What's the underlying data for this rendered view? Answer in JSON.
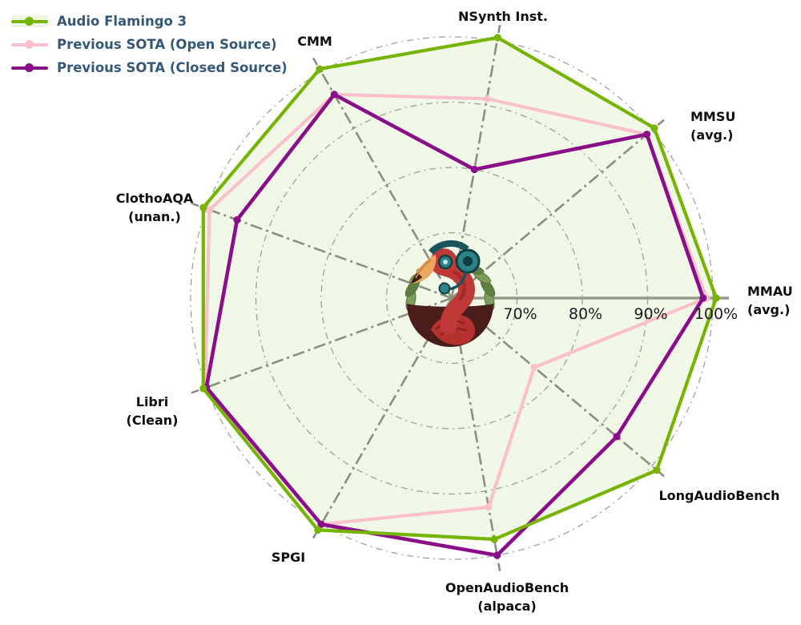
{
  "legend": {
    "text_color": "#35587a",
    "items": [
      {
        "label": "Audio Flamingo 3"
      },
      {
        "label": "Previous SOTA (Open Source)"
      },
      {
        "label": "Previous SOTA (Closed Source)"
      }
    ]
  },
  "chart_data": {
    "type": "radar",
    "title": "",
    "legend_position": "top-left",
    "grid": "dash-dot circles and spokes",
    "rticks": [
      "70%",
      "80%",
      "90%",
      "100%"
    ],
    "rtick_values": [
      70,
      80,
      90,
      100
    ],
    "rmin": 60,
    "rmax": 102.5,
    "axes": [
      {
        "label": "MMAU",
        "sub": "(avg.)",
        "angle_deg": 0
      },
      {
        "label": "MMSU",
        "sub": "(avg.)",
        "angle_deg": 40
      },
      {
        "label": "NSynth Inst.",
        "sub": "",
        "angle_deg": 80
      },
      {
        "label": "CMM",
        "sub": "",
        "angle_deg": 120
      },
      {
        "label": "ClothoAQA",
        "sub": "(unan.)",
        "angle_deg": 160
      },
      {
        "label": "Libri",
        "sub": "(Clean)",
        "angle_deg": 200
      },
      {
        "label": "SPGI",
        "sub": "",
        "angle_deg": 240
      },
      {
        "label": "OpenAudioBench",
        "sub": "(alpaca)",
        "angle_deg": 280
      },
      {
        "label": "LongAudioBench",
        "sub": "",
        "angle_deg": 320
      }
    ],
    "series": [
      {
        "name": "Audio Flamingo 3",
        "color": "#75b401",
        "fill": "rgba(124,186,20,0.10)",
        "legend_band": "#eef5e2",
        "values": [
          100.5,
          100.5,
          100.5,
          100.5,
          100.5,
          100.5,
          101,
          97.5,
          101
        ]
      },
      {
        "name": "Previous SOTA (Open Source)",
        "color": "#fac1cc",
        "values": [
          99,
          99,
          91,
          96,
          99.5,
          100.2,
          100,
          92.5,
          76.5
        ]
      },
      {
        "name": "Previous SOTA (Closed Source)",
        "color": "#8a0d8a",
        "values": [
          98.5,
          99,
          80,
          96,
          95,
          100,
          100,
          100,
          93
        ]
      }
    ]
  },
  "logo": {
    "name": "Audio Flamingo mascot logo"
  }
}
